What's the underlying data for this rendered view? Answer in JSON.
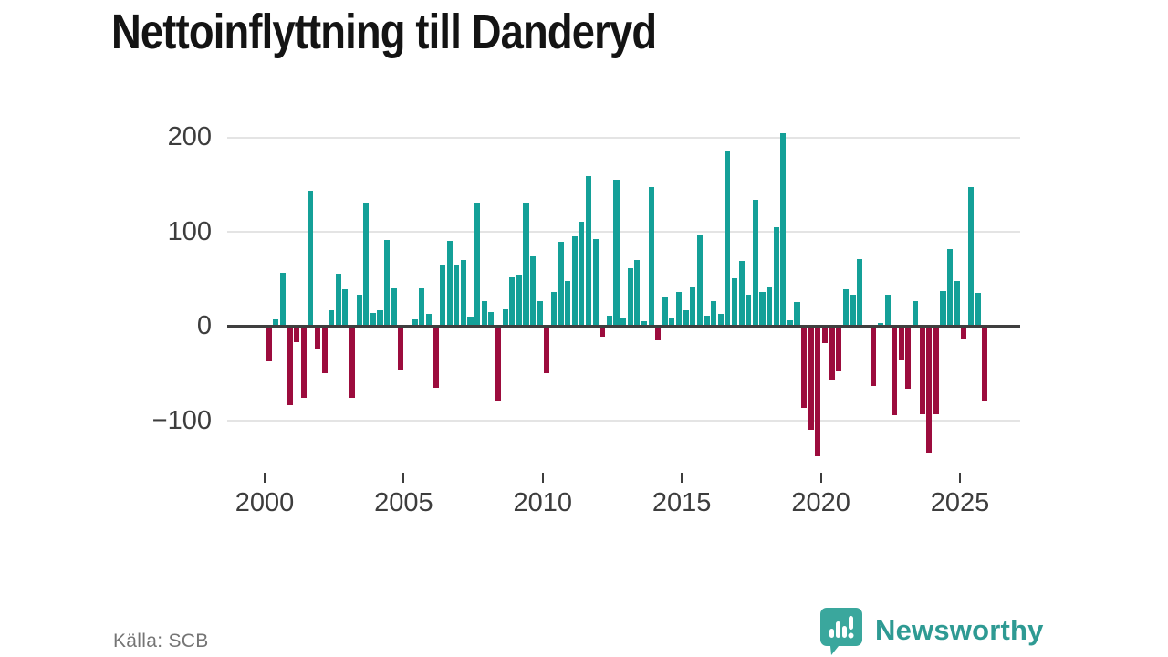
{
  "header": {
    "title": "Nettoinflyttning till Danderyd"
  },
  "footer": {
    "source": "Källa: SCB",
    "brand": "Newsworthy",
    "brand_logo_icon": "speech-bubble-bar-chart-icon"
  },
  "colors": {
    "positive_bar": "#14a098",
    "negative_bar": "#9c0c3d",
    "zero_line": "#3f3f3f",
    "gridline": "#e4e4e4",
    "axis_text": "#3d3d3d",
    "brand_teal": "#2e9a93"
  },
  "chart_data": {
    "type": "bar",
    "title": "Nettoinflyttning till Danderyd",
    "xlabel": "",
    "ylabel": "",
    "grid": true,
    "legend": "none",
    "ylim": [
      -150,
      215
    ],
    "y_ticks": [
      200,
      100,
      0,
      -100
    ],
    "y_tick_labels": [
      "200",
      "100",
      "0",
      "−100"
    ],
    "x_tick_labels": [
      "2000",
      "2005",
      "2010",
      "2015",
      "2020",
      "2025"
    ],
    "series_note": "quarterly net migration, positive teal / negative crimson",
    "quarters": [
      {
        "q": "2000-Q1",
        "v": -37
      },
      {
        "q": "2000-Q2",
        "v": 7
      },
      {
        "q": "2000-Q3",
        "v": 57
      },
      {
        "q": "2000-Q4",
        "v": -84
      },
      {
        "q": "2001-Q1",
        "v": -17
      },
      {
        "q": "2001-Q2",
        "v": -76
      },
      {
        "q": "2001-Q3",
        "v": 143
      },
      {
        "q": "2001-Q4",
        "v": -24
      },
      {
        "q": "2002-Q1",
        "v": -50
      },
      {
        "q": "2002-Q2",
        "v": 17
      },
      {
        "q": "2002-Q3",
        "v": 56
      },
      {
        "q": "2002-Q4",
        "v": 39
      },
      {
        "q": "2003-Q1",
        "v": -76
      },
      {
        "q": "2003-Q2",
        "v": 33
      },
      {
        "q": "2003-Q3",
        "v": 130
      },
      {
        "q": "2003-Q4",
        "v": 14
      },
      {
        "q": "2004-Q1",
        "v": 17
      },
      {
        "q": "2004-Q2",
        "v": 91
      },
      {
        "q": "2004-Q3",
        "v": 40
      },
      {
        "q": "2004-Q4",
        "v": -46
      },
      {
        "q": "2005-Q1",
        "v": 0
      },
      {
        "q": "2005-Q2",
        "v": 7
      },
      {
        "q": "2005-Q3",
        "v": 40
      },
      {
        "q": "2005-Q4",
        "v": 13
      },
      {
        "q": "2006-Q1",
        "v": -65
      },
      {
        "q": "2006-Q2",
        "v": 65
      },
      {
        "q": "2006-Q3",
        "v": 90
      },
      {
        "q": "2006-Q4",
        "v": 65
      },
      {
        "q": "2007-Q1",
        "v": 70
      },
      {
        "q": "2007-Q2",
        "v": 10
      },
      {
        "q": "2007-Q3",
        "v": 131
      },
      {
        "q": "2007-Q4",
        "v": 27
      },
      {
        "q": "2008-Q1",
        "v": 15
      },
      {
        "q": "2008-Q2",
        "v": -79
      },
      {
        "q": "2008-Q3",
        "v": 18
      },
      {
        "q": "2008-Q4",
        "v": 52
      },
      {
        "q": "2009-Q1",
        "v": 55
      },
      {
        "q": "2009-Q2",
        "v": 131
      },
      {
        "q": "2009-Q3",
        "v": 74
      },
      {
        "q": "2009-Q4",
        "v": 27
      },
      {
        "q": "2010-Q1",
        "v": -50
      },
      {
        "q": "2010-Q2",
        "v": 36
      },
      {
        "q": "2010-Q3",
        "v": 89
      },
      {
        "q": "2010-Q4",
        "v": 48
      },
      {
        "q": "2011-Q1",
        "v": 95
      },
      {
        "q": "2011-Q2",
        "v": 111
      },
      {
        "q": "2011-Q3",
        "v": 159
      },
      {
        "q": "2011-Q4",
        "v": 92
      },
      {
        "q": "2012-Q1",
        "v": -11
      },
      {
        "q": "2012-Q2",
        "v": 11
      },
      {
        "q": "2012-Q3",
        "v": 155
      },
      {
        "q": "2012-Q4",
        "v": 9
      },
      {
        "q": "2013-Q1",
        "v": 61
      },
      {
        "q": "2013-Q2",
        "v": 70
      },
      {
        "q": "2013-Q3",
        "v": 5
      },
      {
        "q": "2013-Q4",
        "v": 147
      },
      {
        "q": "2014-Q1",
        "v": -15
      },
      {
        "q": "2014-Q2",
        "v": 30
      },
      {
        "q": "2014-Q3",
        "v": 8
      },
      {
        "q": "2014-Q4",
        "v": 36
      },
      {
        "q": "2015-Q1",
        "v": 17
      },
      {
        "q": "2015-Q2",
        "v": 41
      },
      {
        "q": "2015-Q3",
        "v": 96
      },
      {
        "q": "2015-Q4",
        "v": 11
      },
      {
        "q": "2016-Q1",
        "v": 27
      },
      {
        "q": "2016-Q2",
        "v": 13
      },
      {
        "q": "2016-Q3",
        "v": 185
      },
      {
        "q": "2016-Q4",
        "v": 51
      },
      {
        "q": "2017-Q1",
        "v": 69
      },
      {
        "q": "2017-Q2",
        "v": 33
      },
      {
        "q": "2017-Q3",
        "v": 134
      },
      {
        "q": "2017-Q4",
        "v": 36
      },
      {
        "q": "2018-Q1",
        "v": 41
      },
      {
        "q": "2018-Q2",
        "v": 105
      },
      {
        "q": "2018-Q3",
        "v": 204
      },
      {
        "q": "2018-Q4",
        "v": 6
      },
      {
        "q": "2019-Q1",
        "v": 26
      },
      {
        "q": "2019-Q2",
        "v": -86
      },
      {
        "q": "2019-Q3",
        "v": -110
      },
      {
        "q": "2019-Q4",
        "v": -138
      },
      {
        "q": "2020-Q1",
        "v": -18
      },
      {
        "q": "2020-Q2",
        "v": -57
      },
      {
        "q": "2020-Q3",
        "v": -48
      },
      {
        "q": "2020-Q4",
        "v": 39
      },
      {
        "q": "2021-Q1",
        "v": 33
      },
      {
        "q": "2021-Q2",
        "v": 71
      },
      {
        "q": "2021-Q3",
        "v": 0
      },
      {
        "q": "2021-Q4",
        "v": -63
      },
      {
        "q": "2022-Q1",
        "v": 3
      },
      {
        "q": "2022-Q2",
        "v": 33
      },
      {
        "q": "2022-Q3",
        "v": -94
      },
      {
        "q": "2022-Q4",
        "v": -36
      },
      {
        "q": "2023-Q1",
        "v": -66
      },
      {
        "q": "2023-Q2",
        "v": 27
      },
      {
        "q": "2023-Q3",
        "v": -93
      },
      {
        "q": "2023-Q4",
        "v": -134
      },
      {
        "q": "2024-Q1",
        "v": -93
      },
      {
        "q": "2024-Q2",
        "v": 37
      },
      {
        "q": "2024-Q3",
        "v": 82
      },
      {
        "q": "2024-Q4",
        "v": 48
      },
      {
        "q": "2025-Q1",
        "v": -14
      },
      {
        "q": "2025-Q2",
        "v": 147
      },
      {
        "q": "2025-Q3",
        "v": 35
      },
      {
        "q": "2025-Q4",
        "v": -79
      }
    ]
  }
}
